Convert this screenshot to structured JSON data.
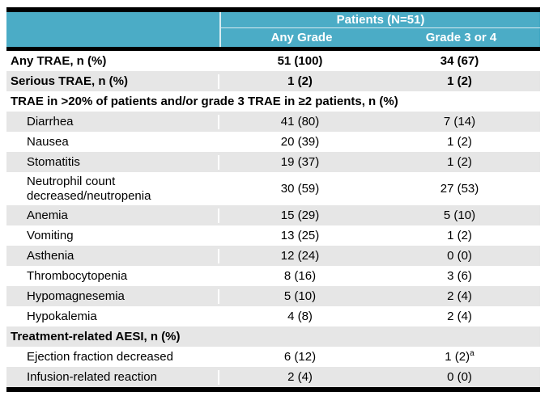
{
  "header": {
    "patients_group": "Patients (N=51)",
    "any_grade": "Any Grade",
    "grade_3_or_4": "Grade 3 or 4"
  },
  "rows": [
    {
      "label": "Any TRAE, n (%)",
      "any_grade": "51 (100)",
      "grade_3_or_4": "34 (67)",
      "style": "top"
    },
    {
      "label": "Serious TRAE, n (%)",
      "any_grade": "1 (2)",
      "grade_3_or_4": "1 (2)",
      "style": "top"
    },
    {
      "label": "TRAE in >20% of patients and/or grade 3 TRAE in ≥2 patients, n (%)",
      "style": "section"
    },
    {
      "label": "Diarrhea",
      "any_grade": "41 (80)",
      "grade_3_or_4": "7 (14)",
      "style": "sub"
    },
    {
      "label": "Nausea",
      "any_grade": "20 (39)",
      "grade_3_or_4": "1 (2)",
      "style": "sub"
    },
    {
      "label": "Stomatitis",
      "any_grade": "19 (37)",
      "grade_3_or_4": "1 (2)",
      "style": "sub"
    },
    {
      "label": "Neutrophil count\ndecreased/neutropenia",
      "any_grade": "30 (59)",
      "grade_3_or_4": "27 (53)",
      "style": "sub",
      "tall": true
    },
    {
      "label": "Anemia",
      "any_grade": "15 (29)",
      "grade_3_or_4": "5 (10)",
      "style": "sub"
    },
    {
      "label": "Vomiting",
      "any_grade": "13 (25)",
      "grade_3_or_4": "1 (2)",
      "style": "sub"
    },
    {
      "label": "Asthenia",
      "any_grade": "12 (24)",
      "grade_3_or_4": "0 (0)",
      "style": "sub"
    },
    {
      "label": "Thrombocytopenia",
      "any_grade": "8 (16)",
      "grade_3_or_4": "3 (6)",
      "style": "sub"
    },
    {
      "label": "Hypomagnesemia",
      "any_grade": "5 (10)",
      "grade_3_or_4": "2 (4)",
      "style": "sub"
    },
    {
      "label": "Hypokalemia",
      "any_grade": "4 (8)",
      "grade_3_or_4": "2 (4)",
      "style": "sub"
    },
    {
      "label": "Treatment-related AESI, n (%)",
      "style": "section"
    },
    {
      "label": "Ejection fraction decreased",
      "any_grade": "6 (12)",
      "grade_3_or_4": "1 (2)",
      "grade_3_or_4_sup": "a",
      "style": "sub"
    },
    {
      "label": "Infusion-related reaction",
      "any_grade": "2 (4)",
      "grade_3_or_4": "0 (0)",
      "style": "sub"
    }
  ],
  "colors": {
    "header_bg": "#4BACC6",
    "header_text": "#FFFFFF",
    "alt_row_bg": "#E6E6E6",
    "border_black": "#000000",
    "divider": "#D8ECF2"
  }
}
